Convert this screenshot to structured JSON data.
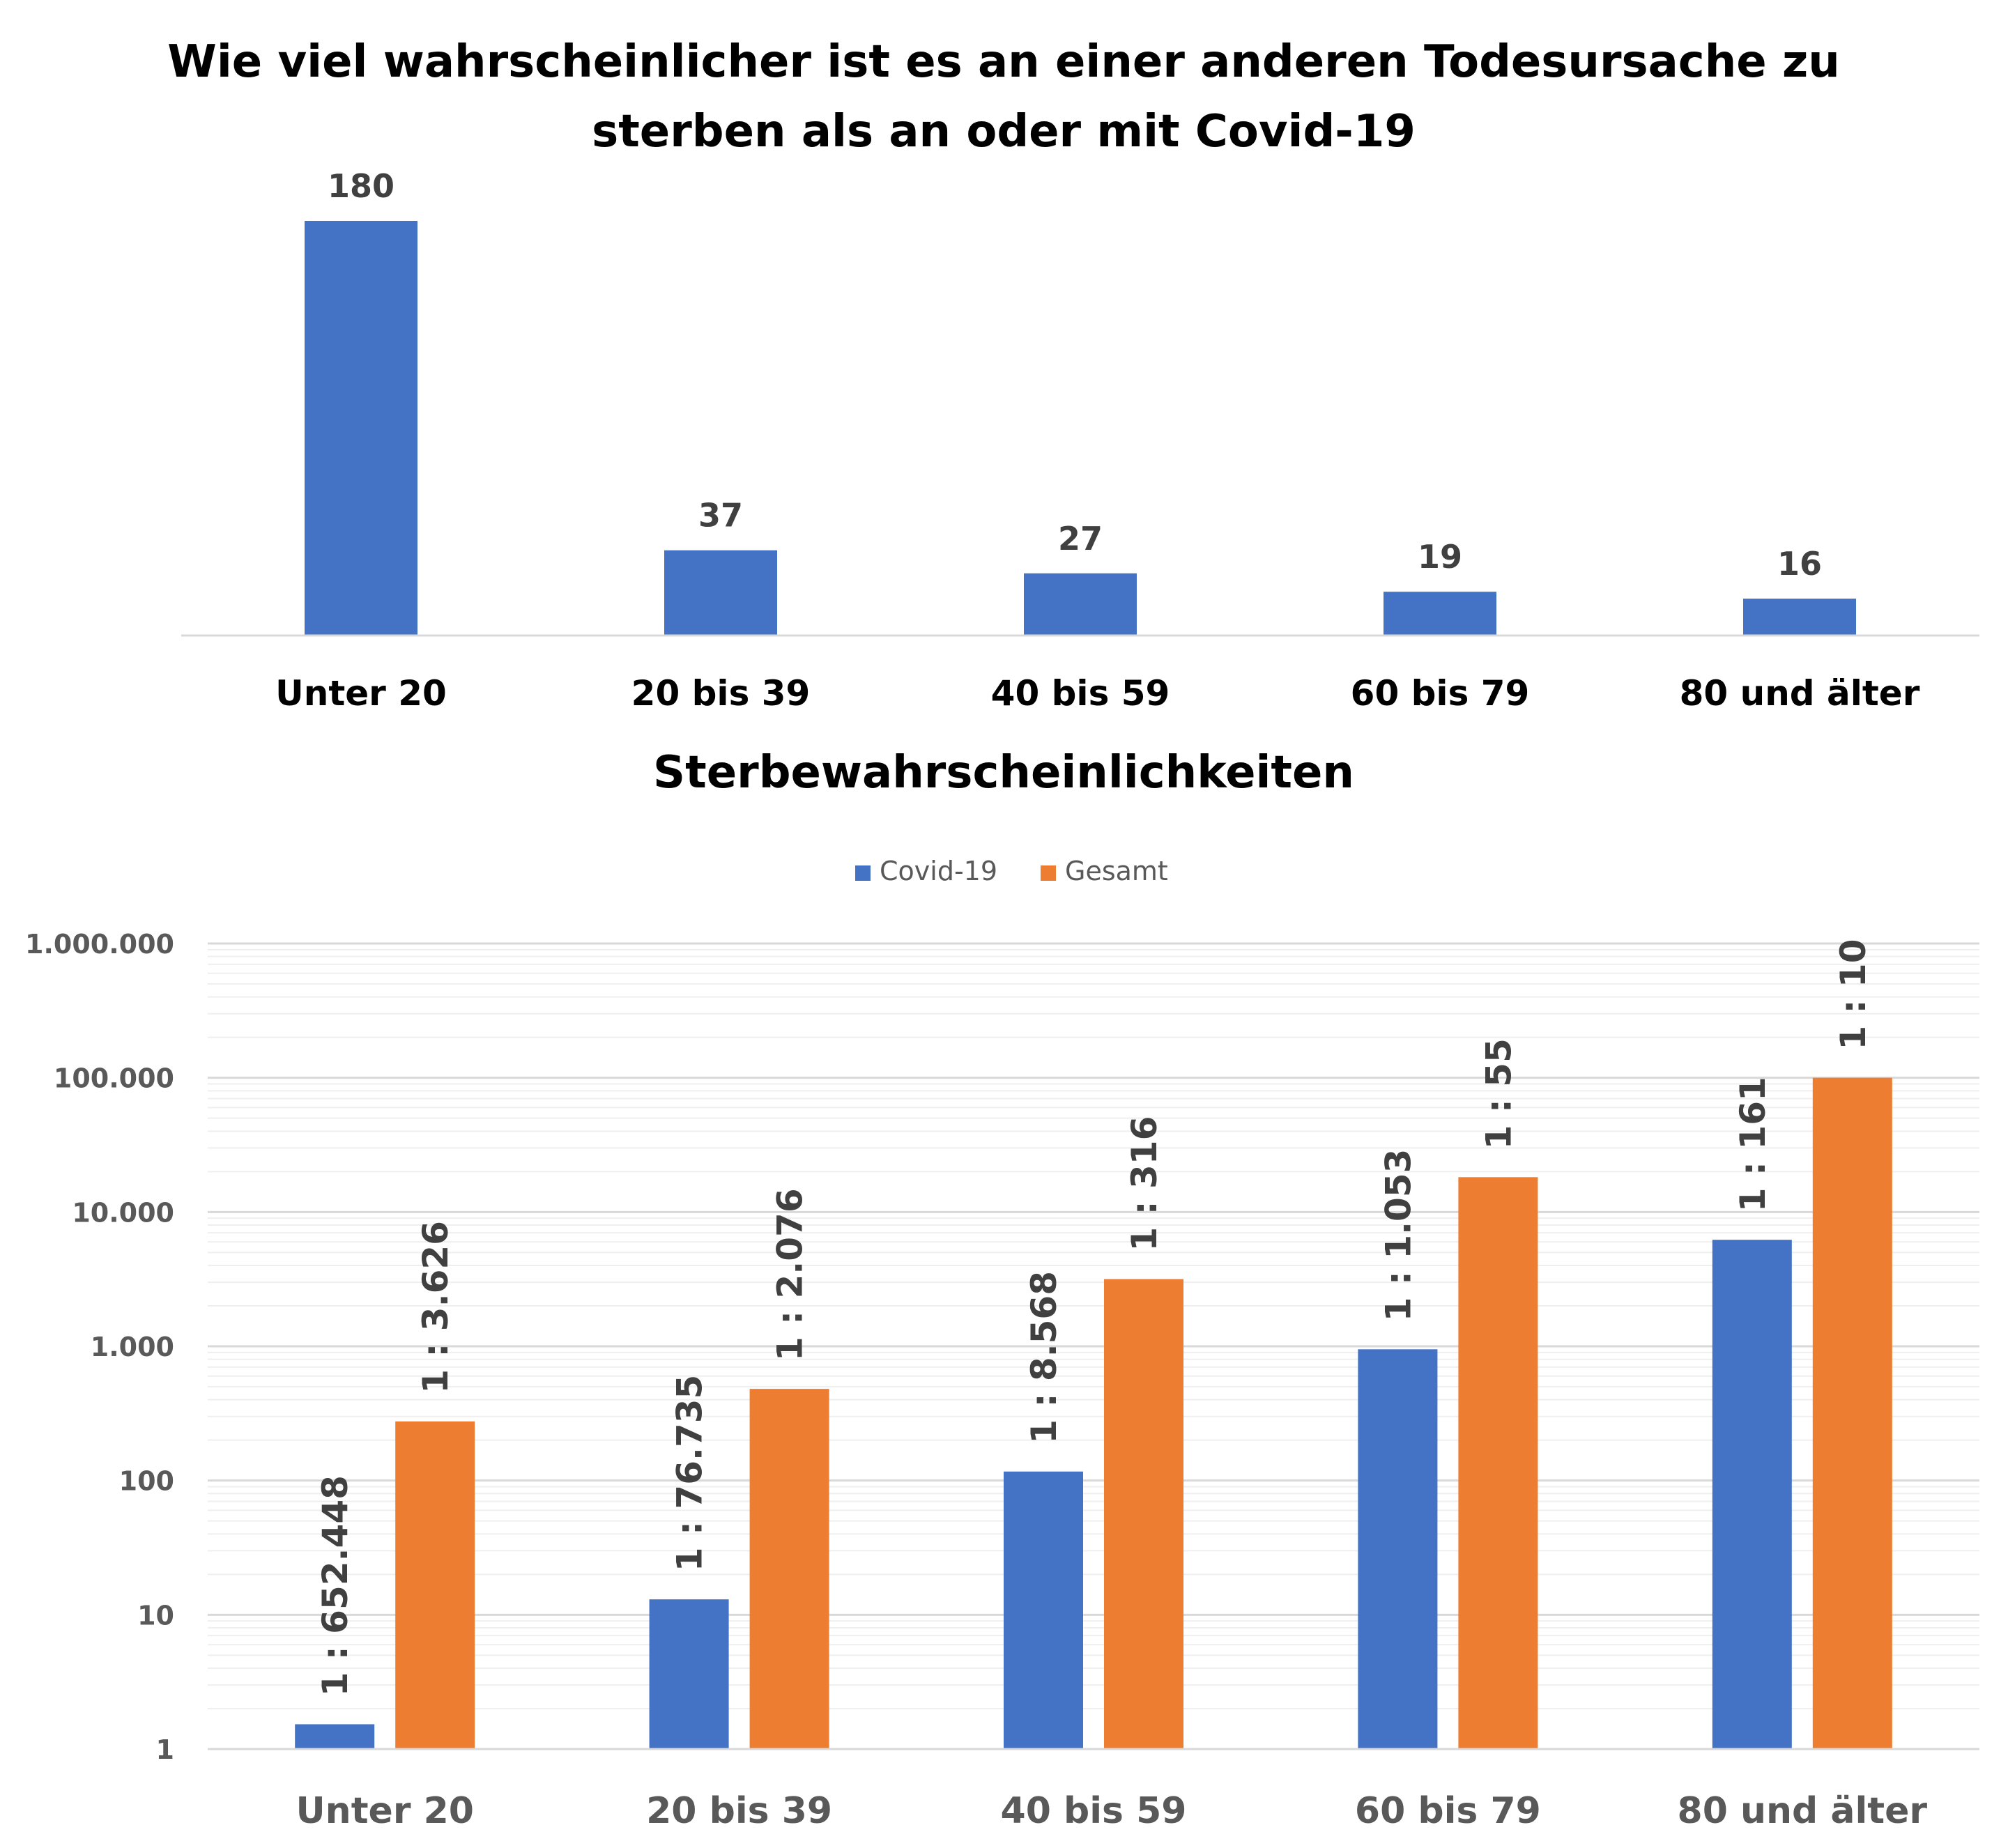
{
  "chart_data": [
    {
      "type": "bar",
      "title": "Wie viel wahrscheinlicher ist es an einer anderen Todesursache zu sterben als an oder mit Covid-19",
      "title_lines": [
        "Wie viel wahrscheinlicher ist es an einer anderen Todesursache zu",
        "sterben als an oder mit Covid-19"
      ],
      "categories": [
        "Unter 20",
        "20 bis 39",
        "40 bis 59",
        "60 bis 79",
        "80 und älter"
      ],
      "values": [
        180,
        37,
        27,
        19,
        16
      ],
      "data_labels": [
        "180",
        "37",
        "27",
        "19",
        "16"
      ],
      "ylim": [
        0,
        180
      ],
      "grid": false,
      "color": "#4472C4"
    },
    {
      "type": "bar",
      "title": "Sterbewahrscheinlichkeiten",
      "categories": [
        "Unter 20",
        "20 bis 39",
        "40 bis 59",
        "60 bis 79",
        "80 und älter"
      ],
      "y_scale": "log",
      "ylim": [
        1,
        1000000
      ],
      "y_ticks": [
        1,
        10,
        100,
        1000,
        10000,
        100000,
        1000000
      ],
      "y_tick_labels": [
        "1",
        "10",
        "100",
        "1.000",
        "10.000",
        "100.000",
        "1.000.000"
      ],
      "grid": true,
      "legend_position": "top",
      "series": [
        {
          "name": "Covid-19",
          "color": "#4472C4",
          "values": [
            1.53,
            13.03,
            116.7,
            949.7,
            6211
          ],
          "data_labels": [
            "1 : 652.448",
            "1 : 76.735",
            "1 : 8.568",
            "1 : 1.053",
            "1 : 161"
          ]
        },
        {
          "name": "Gesamt",
          "color": "#ED7D31",
          "values": [
            275.8,
            481.7,
            3165,
            18182,
            100000
          ],
          "data_labels": [
            "1 : 3.626",
            "1 : 2.076",
            "1 : 316",
            "1 : 55",
            "1 : 10"
          ]
        }
      ]
    }
  ]
}
